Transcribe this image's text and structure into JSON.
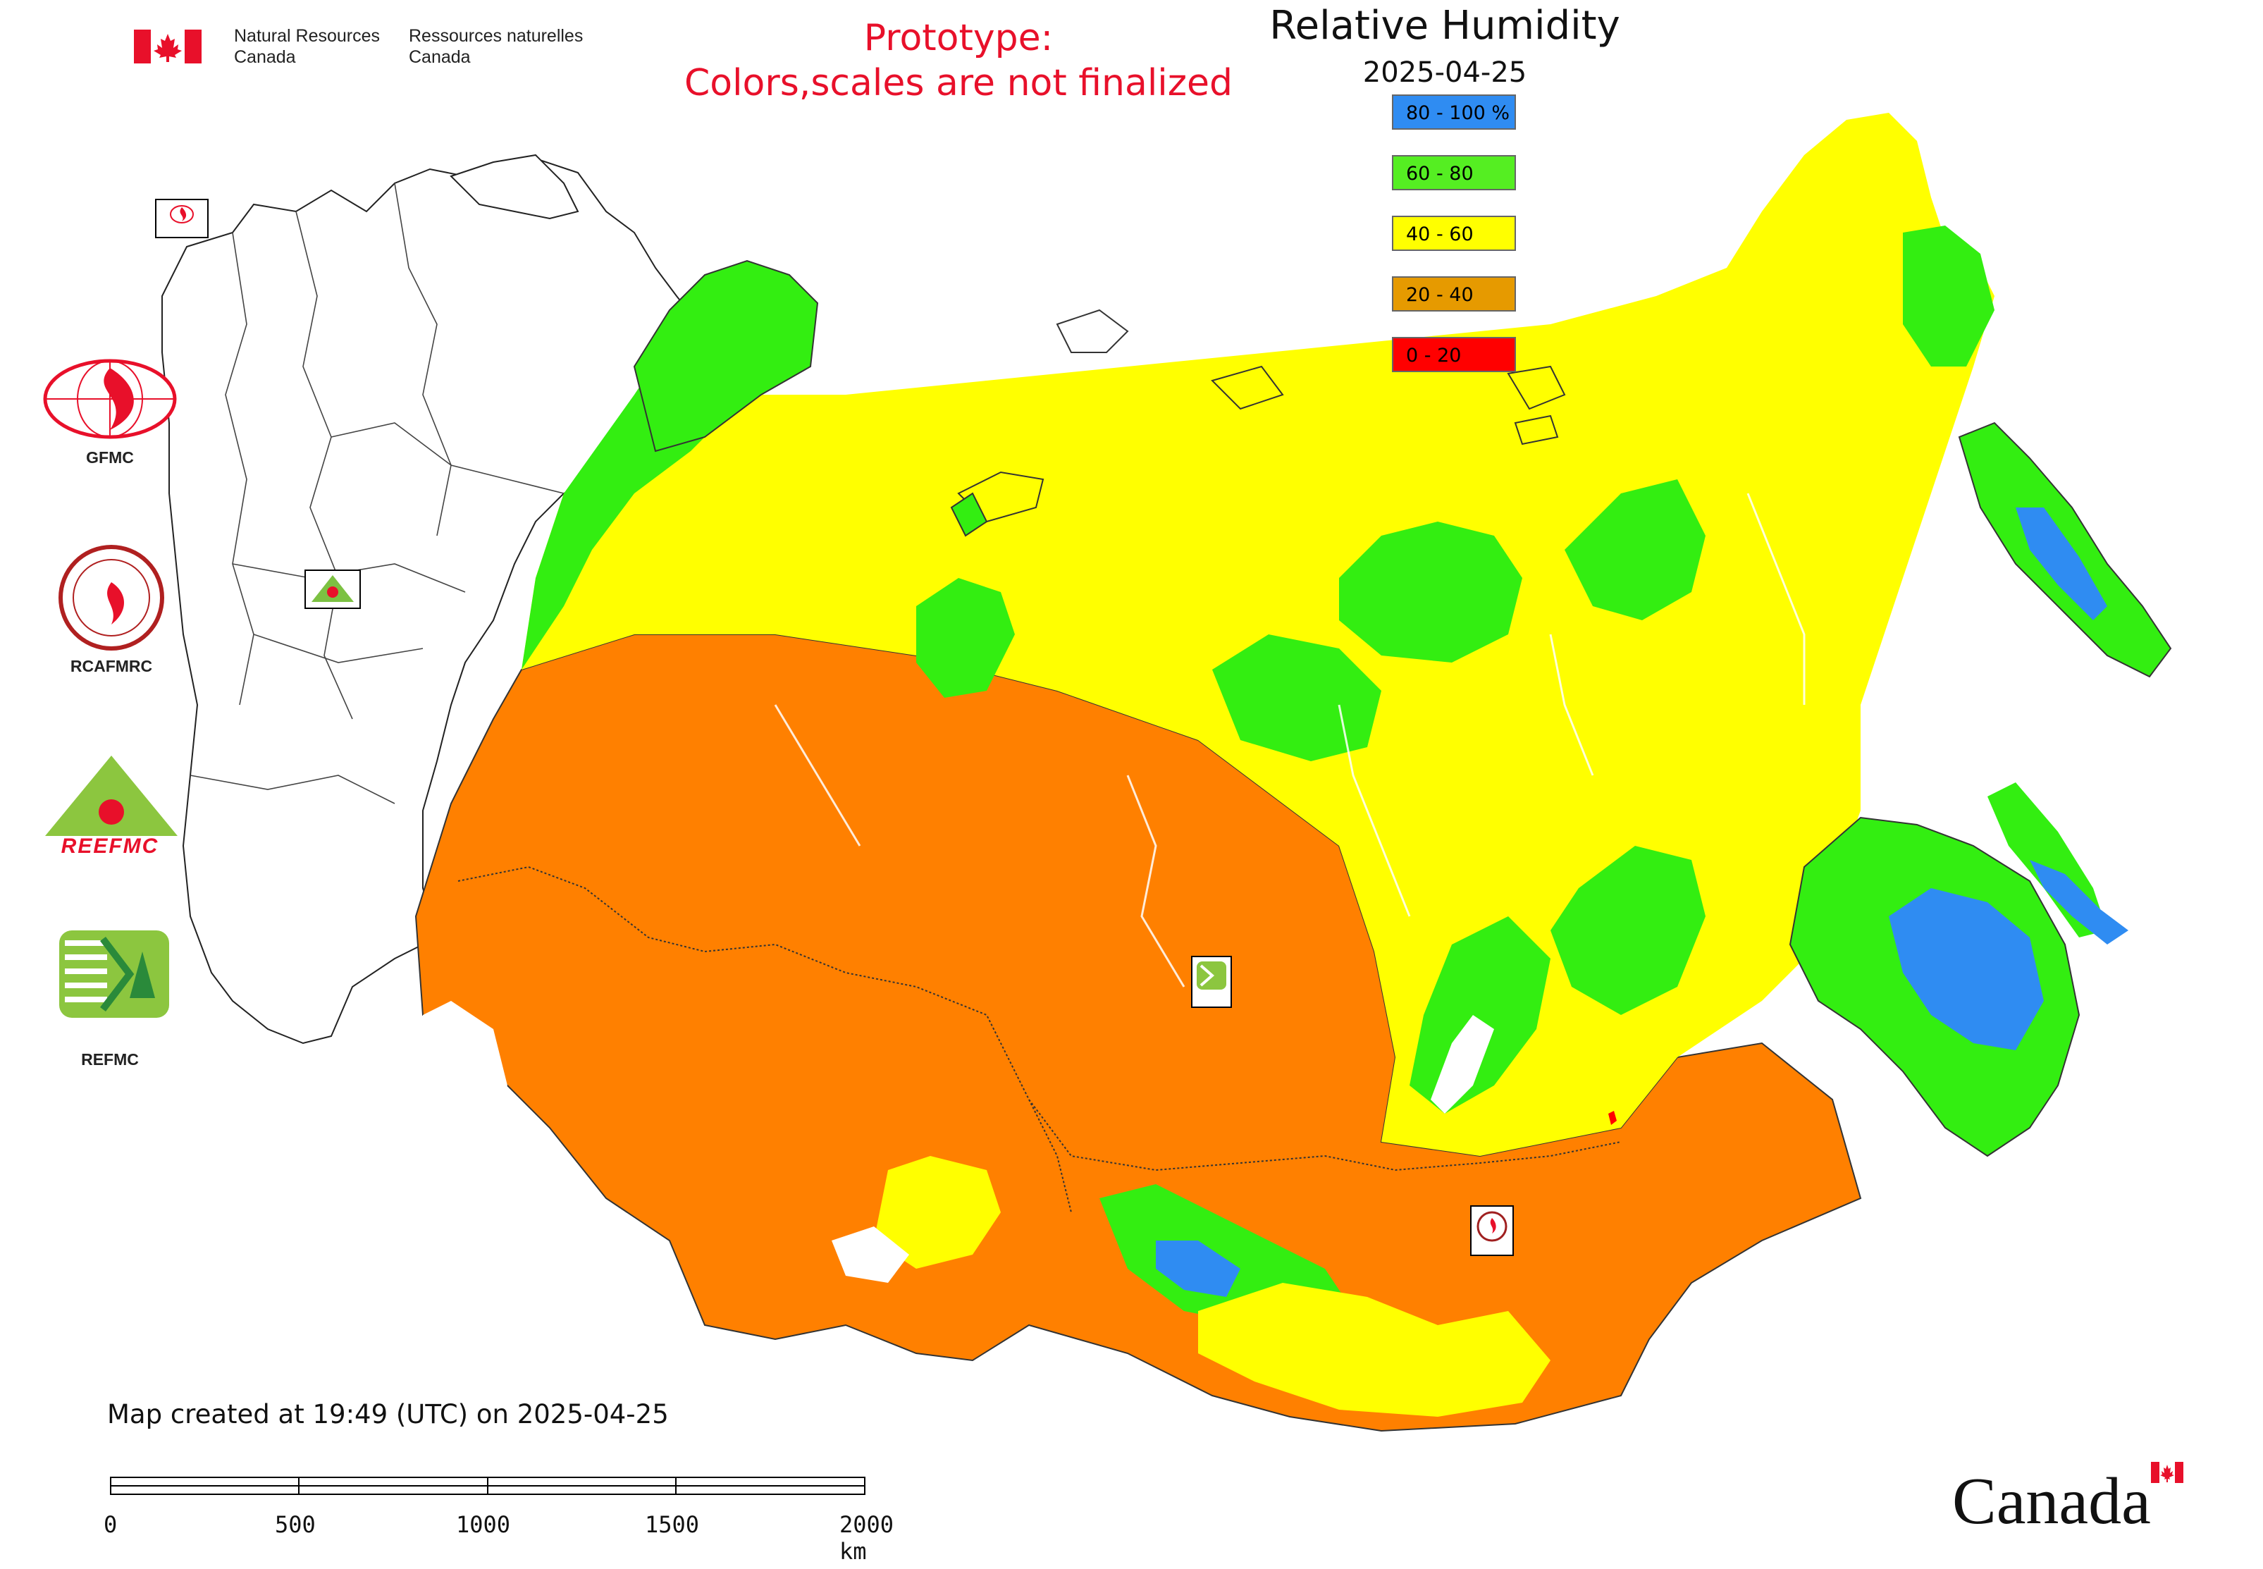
{
  "header": {
    "org_en_line1": "Natural Resources",
    "org_en_line2": "Canada",
    "org_fr_line1": "Ressources naturelles",
    "org_fr_line2": "Canada",
    "prototype_line1": "Prototype:",
    "prototype_line2": "Colors,scales are not finalized"
  },
  "map": {
    "title": "Relative Humidity",
    "date": "2025-04-25",
    "legend": [
      {
        "label": "80 - 100 %",
        "color": "#2f8cf2"
      },
      {
        "label": "60 - 80",
        "color": "#55ee22"
      },
      {
        "label": "40 - 60",
        "color": "#ffff00"
      },
      {
        "label": "20 - 40",
        "color": "#e69a00"
      },
      {
        "label": "0 - 20",
        "color": "#ff0000"
      }
    ],
    "palette": {
      "very_humid": "#2f8cf2",
      "humid": "#33ee11",
      "moderate": "#ffff00",
      "dry": "#ff8000",
      "very_dry": "#ff0000",
      "boundary": "#333333"
    }
  },
  "logos": {
    "gfmc": "GFMC",
    "rcafmrc": "RCAFMRC",
    "reefmc": "REEFMC",
    "refmc": "REFMC",
    "reefmc_text": "REEFMC"
  },
  "footer": {
    "created": "Map created at 19:49 (UTC) on 2025-04-25",
    "scale_ticks": [
      "0",
      "500",
      "1000",
      "1500",
      "2000 km"
    ],
    "canada_wordmark": "Canada"
  }
}
